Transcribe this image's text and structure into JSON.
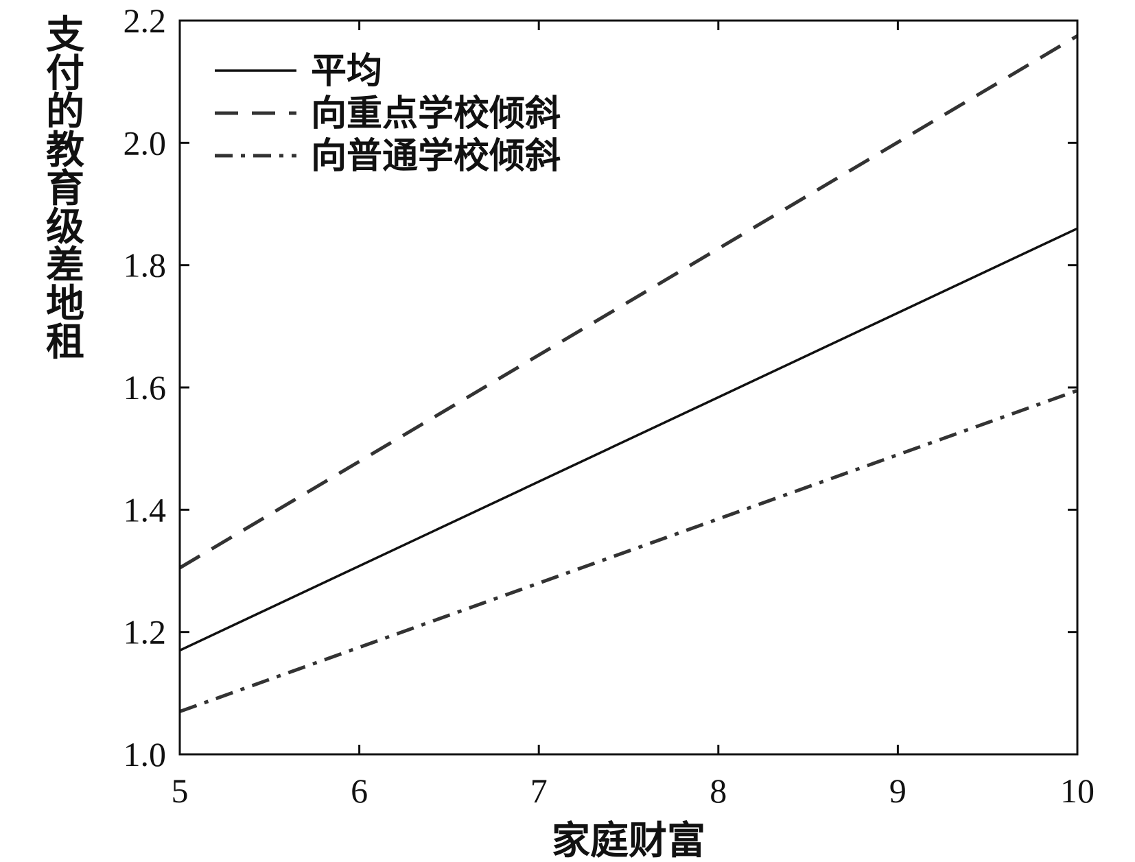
{
  "chart_data": {
    "type": "line",
    "xlabel": "家庭财富",
    "ylabel": "支付的教育级差地租",
    "xlim": [
      5,
      10
    ],
    "ylim": [
      1.0,
      2.2
    ],
    "x_ticks": [
      "5",
      "6",
      "7",
      "8",
      "9",
      "10"
    ],
    "y_ticks": [
      "1.0",
      "1.2",
      "1.4",
      "1.6",
      "1.8",
      "2.0",
      "2.2"
    ],
    "grid": false,
    "legend_position": "top-left",
    "series": [
      {
        "name": "平均",
        "style": "solid",
        "color": "#111111",
        "x": [
          5,
          10
        ],
        "y": [
          1.17,
          1.86
        ]
      },
      {
        "name": "向重点学校倾斜",
        "style": "dashed",
        "color": "#333333",
        "x": [
          5,
          10
        ],
        "y": [
          1.305,
          2.175
        ]
      },
      {
        "name": "向普通学校倾斜",
        "style": "dashdot",
        "color": "#333333",
        "x": [
          5,
          10
        ],
        "y": [
          1.07,
          1.595
        ]
      }
    ]
  }
}
